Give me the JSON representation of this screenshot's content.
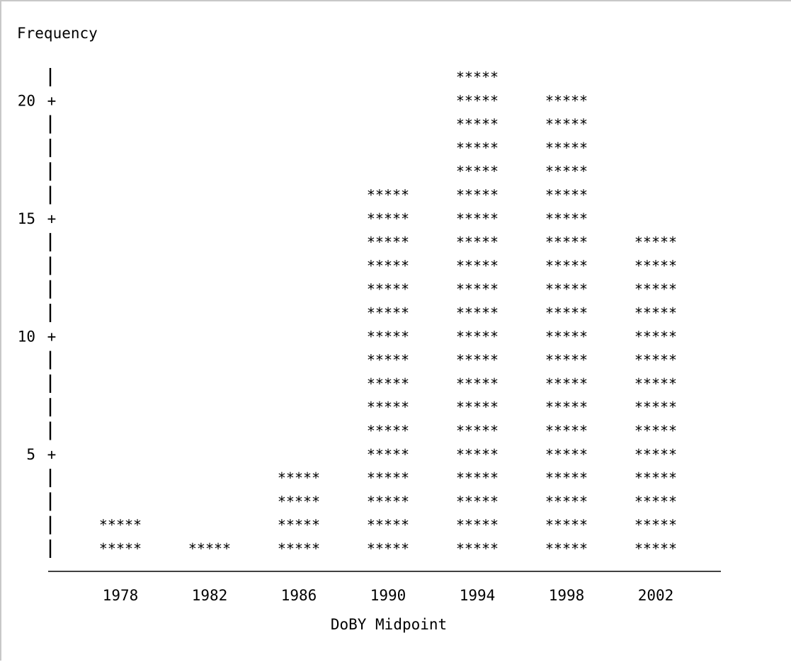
{
  "chart_data": {
    "type": "bar",
    "style": "ascii-histogram",
    "bar_glyph": "*****",
    "title": "",
    "ylabel": "Frequency",
    "xlabel": "DoBY Midpoint",
    "categories": [
      "1978",
      "1982",
      "1986",
      "1990",
      "1994",
      "1998",
      "2002"
    ],
    "values": [
      2,
      1,
      4,
      16,
      21,
      20,
      14
    ],
    "y_ticks": [
      5,
      10,
      15,
      20
    ],
    "ylim": [
      0,
      21
    ],
    "grid": false,
    "legend": "none"
  }
}
